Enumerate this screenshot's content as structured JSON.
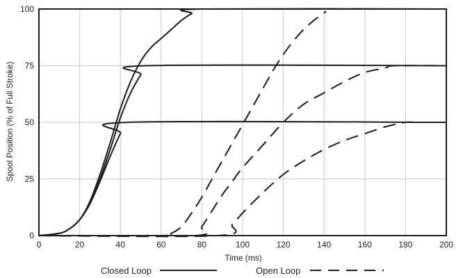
{
  "chart_data": {
    "type": "line",
    "xlabel": "Time (ms)",
    "ylabel": "Spool Position (% of Full Stroke)",
    "xlim": [
      0,
      200
    ],
    "ylim": [
      0,
      100
    ],
    "x_ticks": [
      0,
      20,
      40,
      60,
      80,
      100,
      120,
      140,
      160,
      180,
      200
    ],
    "y_ticks": [
      0,
      25,
      50,
      75,
      100
    ],
    "x_tick_labels": [
      "0",
      "20",
      "40",
      "60",
      "80",
      "100",
      "120",
      "140",
      "160",
      "180",
      "200"
    ],
    "y_tick_labels": [
      "0",
      "25",
      "50",
      "75",
      "100"
    ],
    "grid": true,
    "legend_placement": "bottom",
    "legend": [
      {
        "label": "Closed Loop",
        "style": "solid"
      },
      {
        "label": "Open Loop",
        "style": "dashed"
      }
    ],
    "series": [
      {
        "group": "Closed Loop",
        "style": "solid",
        "x": [
          0,
          10,
          15,
          20,
          25,
          30,
          35,
          40,
          44,
          200
        ],
        "y": [
          0,
          1,
          3,
          7,
          14,
          24,
          35,
          45,
          50,
          50
        ]
      },
      {
        "group": "Closed Loop",
        "style": "solid",
        "x": [
          0,
          10,
          15,
          20,
          25,
          30,
          35,
          40,
          45,
          50,
          53,
          200
        ],
        "y": [
          0,
          1,
          3,
          7,
          14,
          25,
          38,
          52,
          63,
          71,
          75,
          75
        ]
      },
      {
        "group": "Closed Loop",
        "style": "solid",
        "x": [
          0,
          10,
          15,
          20,
          25,
          30,
          35,
          40,
          45,
          50,
          55,
          60,
          65,
          70,
          75,
          80,
          200
        ],
        "y": [
          0,
          1,
          3,
          7,
          15,
          27,
          41,
          56,
          68,
          77,
          83,
          87,
          91,
          95,
          98,
          100,
          100
        ]
      },
      {
        "group": "Open Loop",
        "style": "dashed",
        "x": [
          0,
          60,
          65,
          70,
          75,
          80,
          85,
          90,
          95,
          100,
          105,
          110,
          115,
          120,
          125,
          130,
          135,
          141
        ],
        "y": [
          0,
          0,
          1,
          4,
          10,
          17,
          25,
          33,
          41,
          49,
          57,
          65,
          73,
          80,
          86,
          91,
          95,
          99
        ]
      },
      {
        "group": "Open Loop",
        "style": "dashed",
        "x": [
          0,
          76,
          80,
          85,
          90,
          95,
          100,
          110,
          120,
          130,
          140,
          150,
          160,
          170,
          175,
          200
        ],
        "y": [
          0,
          0,
          4,
          11,
          18,
          24,
          30,
          40,
          50,
          58,
          63,
          68,
          72,
          74,
          75,
          75
        ]
      },
      {
        "group": "Open Loop",
        "style": "dashed",
        "x": [
          0,
          88,
          95,
          100,
          110,
          120,
          130,
          140,
          150,
          160,
          170,
          180,
          185,
          200
        ],
        "y": [
          0,
          0,
          5,
          10,
          19,
          27,
          33,
          38,
          42,
          45,
          48,
          50,
          50,
          50
        ]
      }
    ]
  },
  "colors": {
    "line": "#1a1a1a",
    "grid": "#c8c8c8",
    "frame": "#1a1a1a",
    "text": "#222222"
  }
}
